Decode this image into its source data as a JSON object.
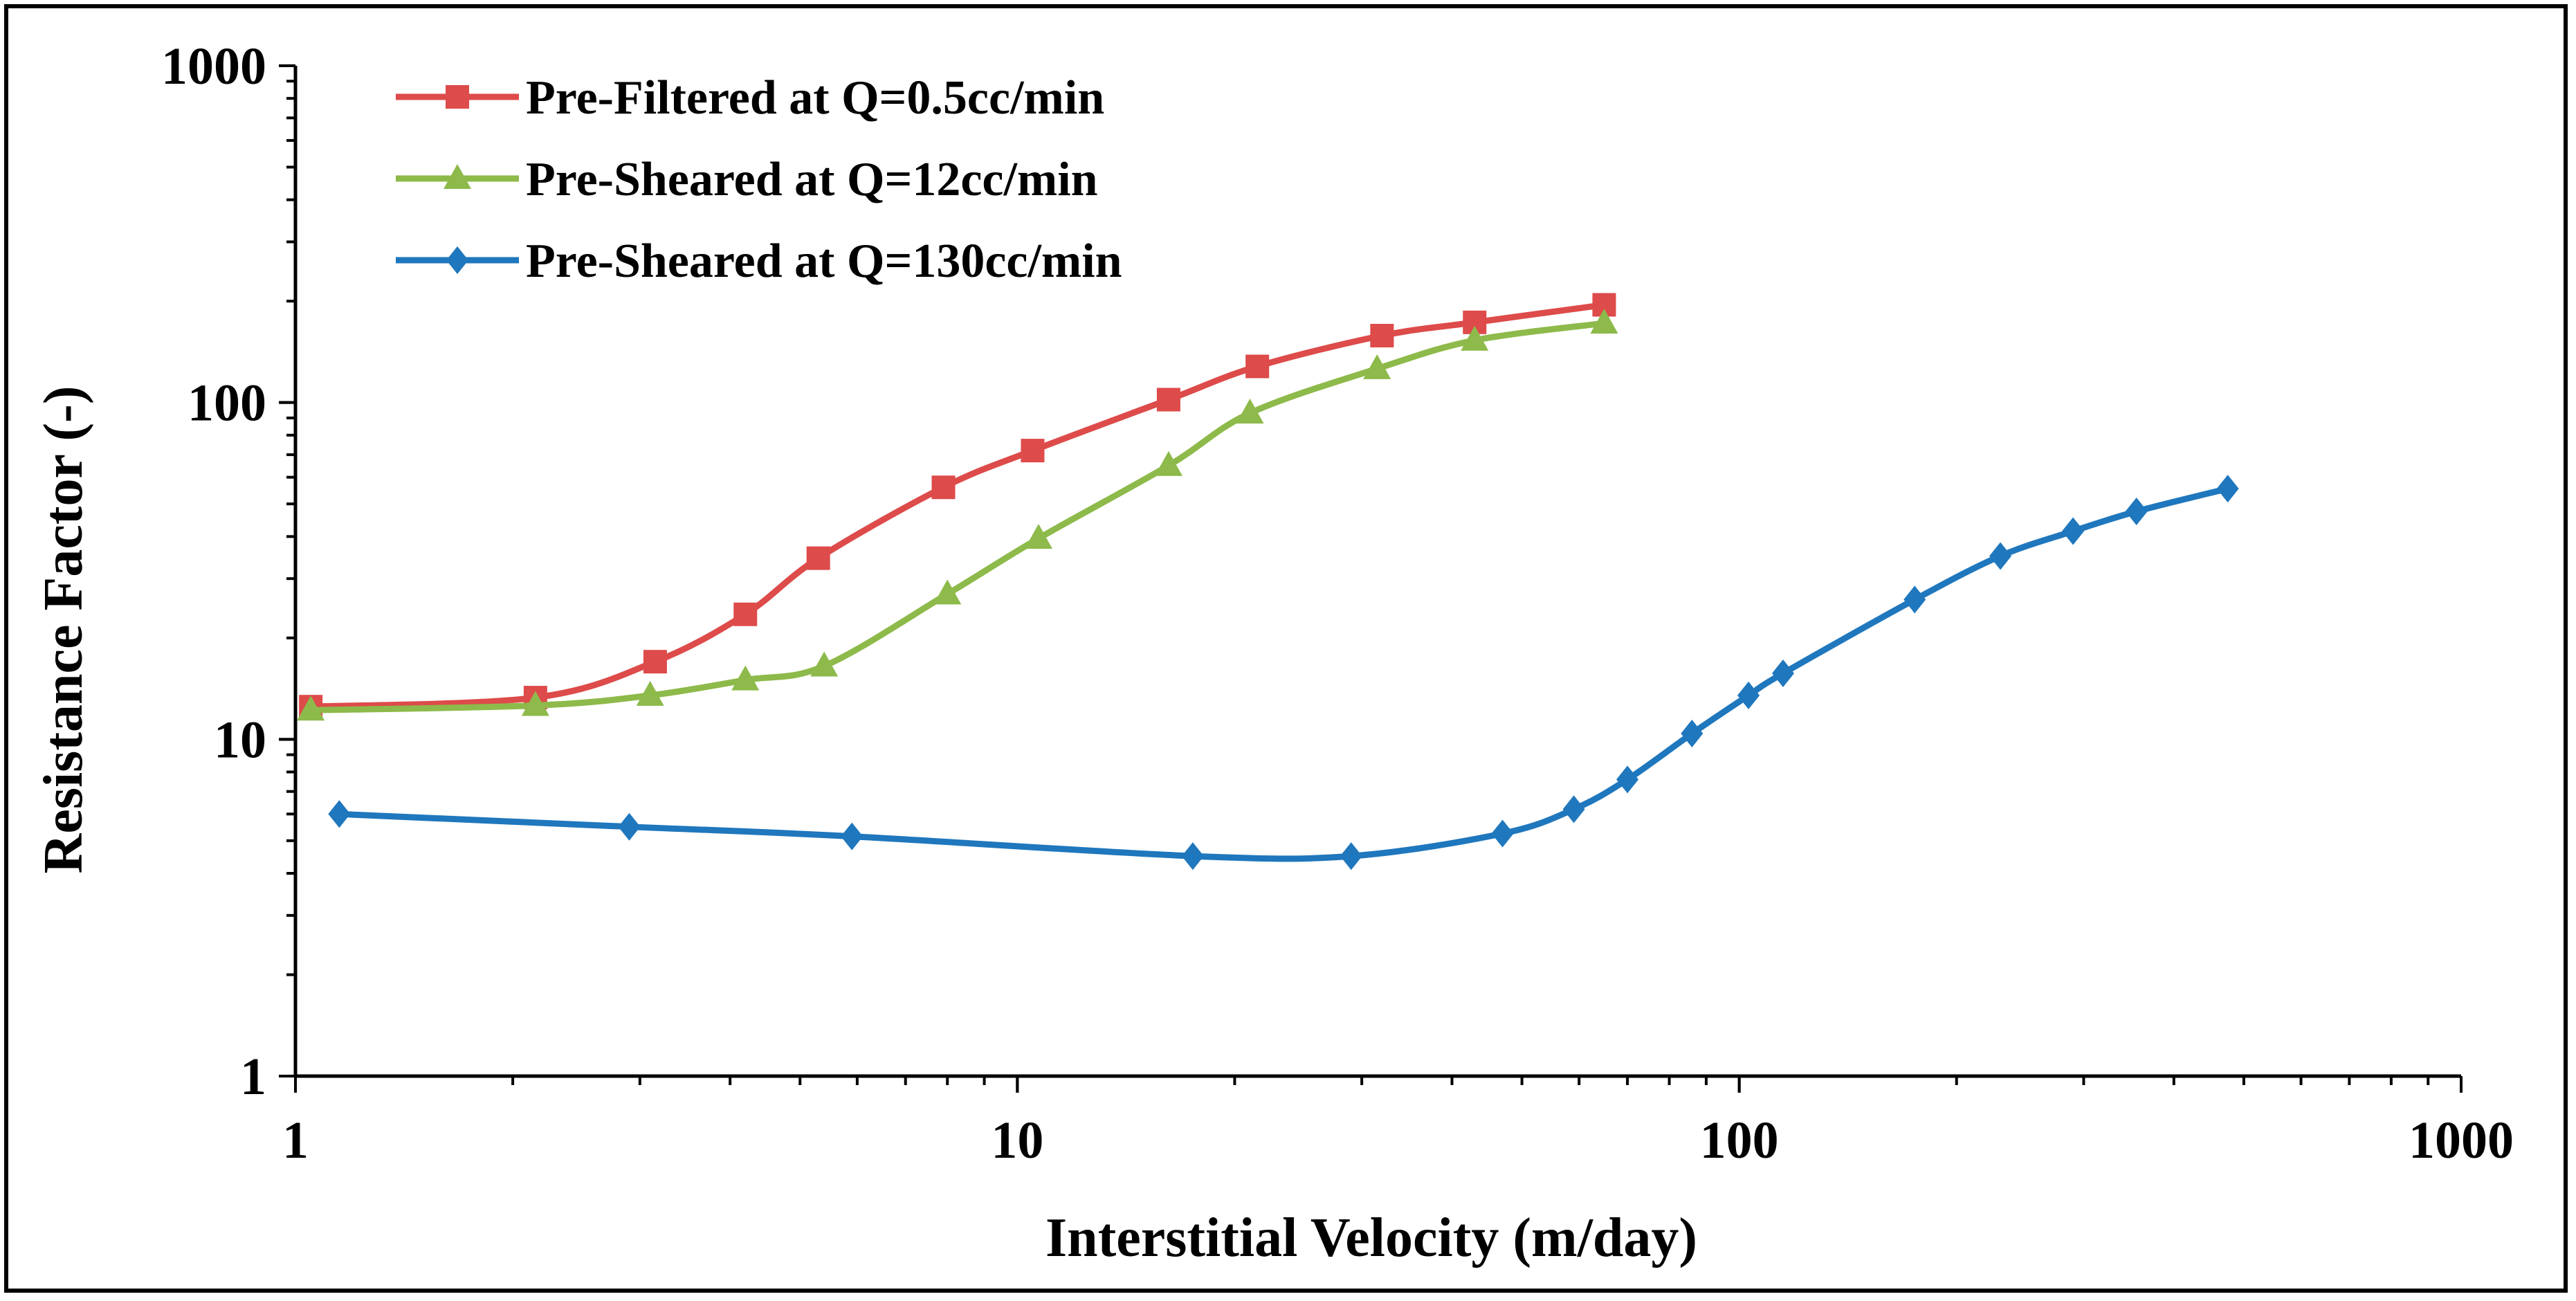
{
  "chart_data": {
    "type": "line",
    "title": "",
    "xlabel": "Interstitial Velocity (m/day)",
    "ylabel": "Resistance Factor (-)",
    "x_scale": "log",
    "y_scale": "log",
    "xlim": [
      1,
      1000
    ],
    "ylim": [
      1,
      1000
    ],
    "x_ticks": [
      1,
      10,
      100,
      1000
    ],
    "x_tick_labels": [
      "1",
      "10",
      "100",
      "1000"
    ],
    "y_ticks": [
      1,
      10,
      100,
      1000
    ],
    "y_tick_labels": [
      "1",
      "10",
      "100",
      "1000"
    ],
    "grid": false,
    "legend_position": "top-left",
    "series": [
      {
        "name": "Pre-Filtered at Q=0.5cc/min",
        "color": "#DD4B4A",
        "marker": "square",
        "x": [
          1.05,
          2.15,
          3.15,
          4.2,
          5.3,
          7.9,
          10.5,
          16.2,
          21.5,
          32.0,
          43.0,
          65.0
        ],
        "y": [
          12.5,
          13.3,
          17.0,
          23.5,
          34.5,
          56.0,
          72.0,
          102.0,
          128.0,
          158.0,
          173.0,
          195.0
        ]
      },
      {
        "name": "Pre-Sheared at Q=12cc/min",
        "color": "#8DBA4A",
        "marker": "triangle",
        "x": [
          1.05,
          2.15,
          3.1,
          4.2,
          5.4,
          8.0,
          10.7,
          16.2,
          21.0,
          31.5,
          43.0,
          65.0
        ],
        "y": [
          12.2,
          12.6,
          13.5,
          15.0,
          16.5,
          27.0,
          39.5,
          65.0,
          93.0,
          126.0,
          153.0,
          172.0
        ]
      },
      {
        "name": "Pre-Sheared at Q=130cc/min",
        "color": "#1F77BD",
        "marker": "diamond",
        "x": [
          1.15,
          2.9,
          5.9,
          17.5,
          29.0,
          47.0,
          59.0,
          70.0,
          86.0,
          103.0,
          115.0,
          175.0,
          230.0,
          290.0,
          355.0,
          475.0
        ],
        "y": [
          6.0,
          5.5,
          5.15,
          4.5,
          4.5,
          5.25,
          6.2,
          7.6,
          10.4,
          13.5,
          15.7,
          26.0,
          35.0,
          41.5,
          47.5,
          55.5
        ]
      }
    ]
  }
}
